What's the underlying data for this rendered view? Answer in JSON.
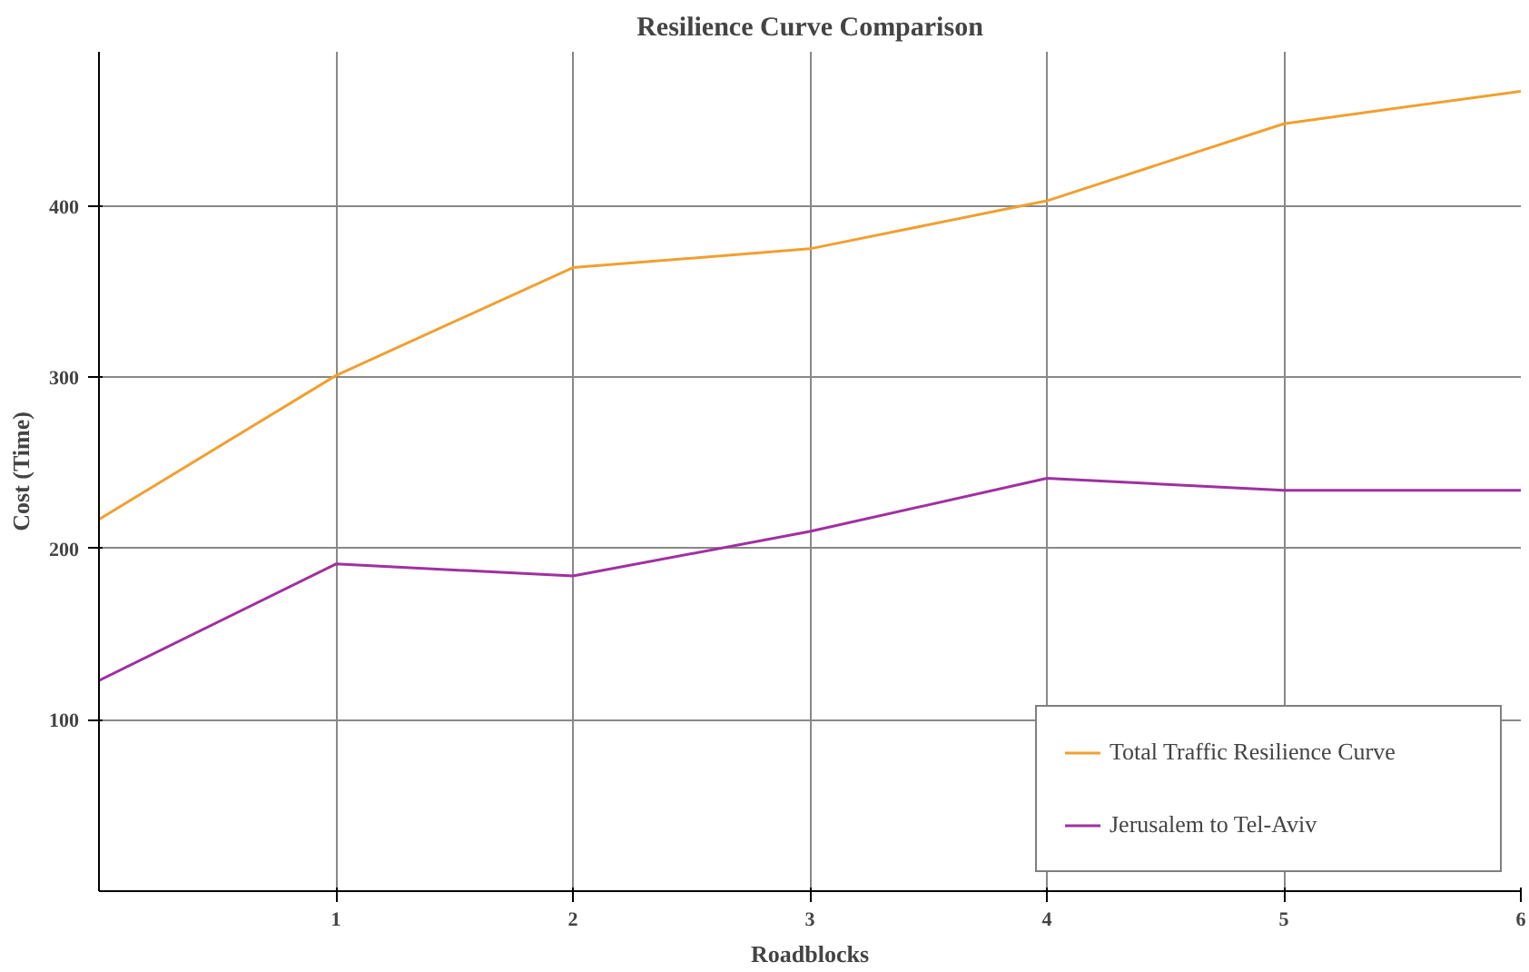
{
  "chart_data": {
    "type": "line",
    "title": "Resilience Curve Comparison",
    "xlabel": "Roadblocks",
    "ylabel": "Cost (Time)",
    "x": [
      0,
      1,
      2,
      3,
      4,
      5,
      6
    ],
    "series": [
      {
        "name": "Total Traffic Resilience Curve",
        "color": "#f0a030",
        "values": [
          217,
          301,
          364,
          375,
          403,
          448,
          467
        ]
      },
      {
        "name": "Jerusalem to Tel-Aviv",
        "color": "#a030a0",
        "values": [
          123,
          191,
          184,
          210,
          241,
          234,
          234
        ]
      }
    ],
    "xlim": [
      0,
      6
    ],
    "ylim": [
      0,
      490
    ],
    "xticks": [
      1,
      2,
      3,
      4,
      5,
      6
    ],
    "yticks": [
      100,
      200,
      300,
      400
    ],
    "grid": true,
    "legend": "bottom right",
    "marker": "none",
    "line_style": "solid"
  }
}
